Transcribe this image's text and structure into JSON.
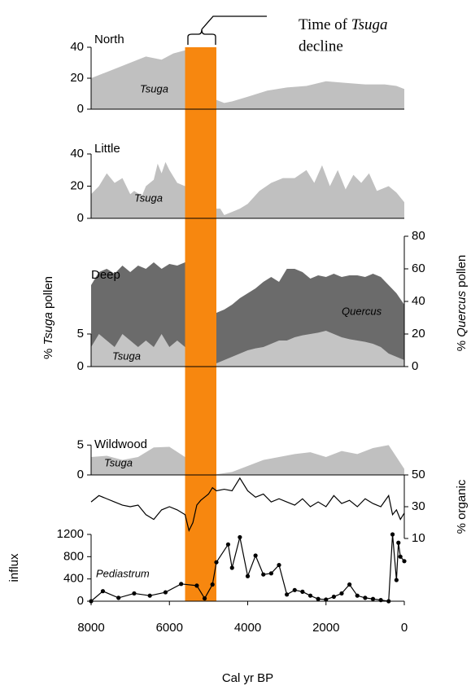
{
  "chart_data": [
    {
      "type": "area",
      "label": "North",
      "xlim": [
        8000,
        0
      ],
      "ylim": [
        0,
        40
      ],
      "yticks": [
        0,
        20,
        40
      ],
      "highlight": {
        "x": [
          5600,
          4800
        ],
        "color": "#f7870f"
      },
      "annotation": {
        "line1": "Time of ",
        "italic": "Tsuga",
        "line2": "decline"
      },
      "x": [
        8000,
        7700,
        7400,
        7000,
        6600,
        6200,
        5900,
        5600,
        5400,
        5200,
        5000,
        4800,
        4600,
        4400,
        4000,
        3500,
        3000,
        2500,
        2000,
        1500,
        1000,
        500,
        200,
        0
      ],
      "series": [
        {
          "name": "Tsuga",
          "color": "#c0c0c0",
          "values": [
            20,
            23,
            26,
            30,
            34,
            32,
            36,
            38,
            36,
            34,
            20,
            6,
            4,
            5,
            8,
            12,
            14,
            15,
            18,
            17,
            16,
            16,
            15,
            13
          ]
        }
      ]
    },
    {
      "type": "area",
      "label": "Little",
      "xlim": [
        8000,
        0
      ],
      "ylim": [
        0,
        40
      ],
      "yticks": [
        0,
        20,
        40
      ],
      "x": [
        8000,
        7800,
        7600,
        7400,
        7200,
        7000,
        6900,
        6700,
        6600,
        6400,
        6300,
        6200,
        6100,
        6000,
        5800,
        5600,
        5400,
        5300,
        5100,
        4900,
        4700,
        4600,
        4400,
        4200,
        4000,
        3700,
        3400,
        3100,
        2800,
        2500,
        2300,
        2100,
        1900,
        1700,
        1500,
        1300,
        1100,
        900,
        700,
        400,
        200,
        0
      ],
      "series": [
        {
          "name": "Tsuga",
          "color": "#c0c0c0",
          "values": [
            15,
            20,
            28,
            22,
            25,
            15,
            17,
            14,
            20,
            24,
            34,
            28,
            35,
            30,
            22,
            20,
            25,
            20,
            8,
            6,
            6,
            2,
            4,
            6,
            9,
            17,
            22,
            25,
            25,
            30,
            22,
            33,
            20,
            30,
            18,
            27,
            22,
            28,
            17,
            20,
            16,
            10
          ]
        }
      ]
    },
    {
      "type": "area",
      "label": "Deep",
      "xlim": [
        8000,
        0
      ],
      "ylim": [
        0,
        20
      ],
      "yticks": [
        0,
        5
      ],
      "y2lim": [
        0,
        80
      ],
      "y2ticks": [
        0,
        20,
        40,
        60,
        80
      ],
      "ylabel": {
        "before": "% ",
        "italic": "Tsuga",
        "after": " pollen"
      },
      "y2label": {
        "before": "% ",
        "italic": "Quercus",
        "after": " pollen"
      },
      "x": [
        8000,
        7800,
        7600,
        7400,
        7200,
        7000,
        6800,
        6600,
        6400,
        6200,
        6000,
        5800,
        5600,
        5400,
        5200,
        5000,
        4800,
        4600,
        4400,
        4200,
        4000,
        3800,
        3600,
        3400,
        3200,
        3000,
        2800,
        2600,
        2400,
        2200,
        2000,
        1800,
        1600,
        1400,
        1200,
        1000,
        800,
        600,
        400,
        200,
        0
      ],
      "series": [
        {
          "name": "Quercus",
          "axis": "y2",
          "color": "#6b6b6b",
          "values": [
            50,
            58,
            60,
            57,
            62,
            58,
            62,
            60,
            64,
            60,
            63,
            62,
            64,
            63,
            60,
            45,
            33,
            35,
            38,
            42,
            45,
            48,
            52,
            55,
            52,
            60,
            60,
            58,
            54,
            56,
            55,
            57,
            55,
            56,
            56,
            55,
            57,
            55,
            50,
            45,
            38
          ]
        },
        {
          "name": "Tsuga",
          "color": "#c4c4c4",
          "values": [
            3,
            5,
            4,
            3,
            5,
            4,
            3,
            4,
            3,
            5,
            3,
            4,
            3,
            4,
            3,
            1,
            0.5,
            1,
            1.5,
            2,
            2.5,
            2.8,
            3,
            3.5,
            4,
            4,
            4.5,
            4.8,
            5,
            5.2,
            5.5,
            5,
            4.5,
            4.2,
            4,
            3.8,
            3.5,
            3,
            2,
            1.5,
            1
          ]
        }
      ]
    },
    {
      "type": "area",
      "label": "Wildwood",
      "xlim": [
        8000,
        0
      ],
      "ylim": [
        0,
        6
      ],
      "yticks": [
        0,
        5
      ],
      "x": [
        8000,
        7600,
        7200,
        6800,
        6400,
        6000,
        5600,
        5200,
        4800,
        4400,
        4000,
        3600,
        3200,
        2800,
        2400,
        2000,
        1600,
        1200,
        800,
        400,
        0
      ],
      "series": [
        {
          "name": "Tsuga",
          "color": "#c0c0c0",
          "values": [
            3,
            3.2,
            2.5,
            3,
            4.6,
            4.7,
            3,
            1,
            0.1,
            0.5,
            1.5,
            2.5,
            3,
            3.5,
            3.8,
            3,
            4,
            3.5,
            4.5,
            5,
            1
          ]
        }
      ]
    },
    {
      "type": "line",
      "xlim": [
        8000,
        0
      ],
      "y2lim": [
        10,
        50
      ],
      "y2ticks": [
        10,
        30,
        50
      ],
      "y2label": "% organic",
      "x": [
        8000,
        7800,
        7600,
        7400,
        7200,
        7000,
        6800,
        6600,
        6400,
        6200,
        6000,
        5800,
        5600,
        5500,
        5400,
        5300,
        5200,
        5000,
        4900,
        4800,
        4600,
        4400,
        4200,
        4000,
        3800,
        3600,
        3400,
        3200,
        3000,
        2800,
        2600,
        2400,
        2200,
        2000,
        1800,
        1600,
        1400,
        1200,
        1000,
        800,
        600,
        400,
        300,
        200,
        100,
        0
      ],
      "series": [
        {
          "axis": "y2",
          "color": "#000000",
          "values": [
            33,
            37,
            35,
            33,
            31,
            30,
            31,
            25,
            22,
            28,
            30,
            28,
            25,
            15,
            20,
            31,
            34,
            38,
            42,
            40,
            41,
            40,
            48,
            40,
            36,
            38,
            33,
            35,
            33,
            31,
            35,
            30,
            33,
            30,
            37,
            32,
            34,
            30,
            35,
            32,
            30,
            37,
            25,
            28,
            22,
            26
          ]
        }
      ]
    },
    {
      "type": "line",
      "markers": true,
      "xlim": [
        8000,
        0
      ],
      "ylim": [
        0,
        1200
      ],
      "yticks": [
        0,
        400,
        800,
        1200
      ],
      "ylabel": "influx",
      "xticks": [
        8000,
        6000,
        4000,
        2000,
        0
      ],
      "xlabel": "Cal yr BP",
      "x": [
        8000,
        7700,
        7300,
        6900,
        6500,
        6100,
        5700,
        5300,
        5100,
        4900,
        4800,
        4500,
        4400,
        4200,
        4000,
        3800,
        3600,
        3400,
        3200,
        3000,
        2800,
        2600,
        2400,
        2200,
        2000,
        1800,
        1600,
        1400,
        1200,
        1000,
        800,
        600,
        400,
        300,
        200,
        150,
        100,
        0
      ],
      "series": [
        {
          "name": "Pediastrum",
          "color": "#000000",
          "values": [
            0,
            180,
            60,
            140,
            100,
            160,
            310,
            280,
            50,
            300,
            700,
            1020,
            600,
            1150,
            450,
            820,
            480,
            500,
            650,
            120,
            200,
            170,
            100,
            40,
            30,
            80,
            140,
            300,
            100,
            60,
            40,
            20,
            0,
            1200,
            380,
            1050,
            800,
            720
          ]
        }
      ]
    }
  ]
}
